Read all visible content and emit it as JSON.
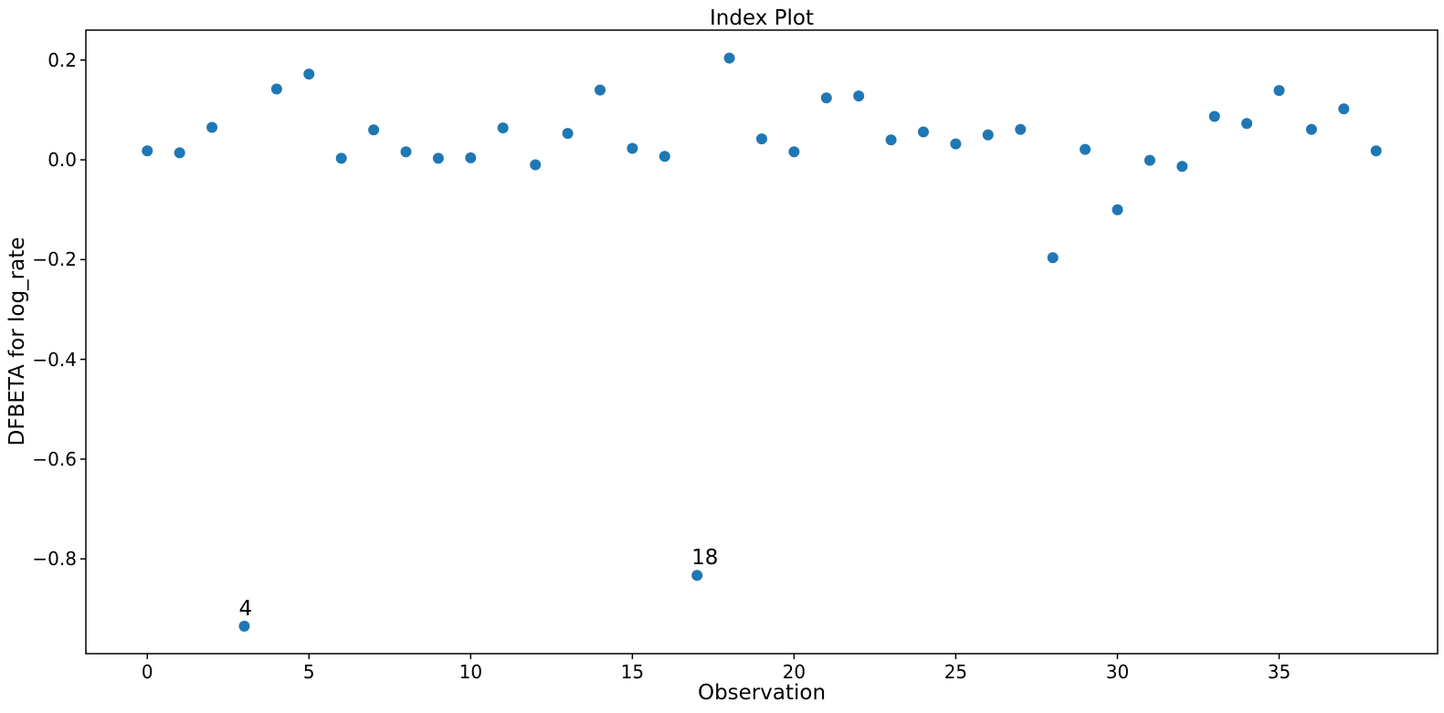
{
  "title": "Index Plot",
  "axes": {
    "xlabel": "Observation",
    "ylabel": "DFBETA for log_rate"
  },
  "colors": {
    "marker": "#1f77b4",
    "axis": "#000000",
    "text": "#000000",
    "background": "#ffffff"
  },
  "chart_data": {
    "type": "scatter",
    "title": "Index Plot",
    "xlabel": "Observation",
    "ylabel": "DFBETA for log_rate",
    "x": [
      0,
      1,
      2,
      3,
      4,
      5,
      6,
      7,
      8,
      9,
      10,
      11,
      12,
      13,
      14,
      15,
      16,
      17,
      18,
      19,
      20,
      21,
      22,
      23,
      24,
      25,
      26,
      27,
      28,
      29,
      30,
      31,
      32,
      33,
      34,
      35,
      36,
      37,
      38
    ],
    "y": [
      0.018,
      0.014,
      0.065,
      -0.935,
      0.142,
      0.172,
      0.003,
      0.06,
      0.016,
      0.003,
      0.004,
      0.064,
      -0.01,
      0.053,
      0.14,
      0.023,
      0.007,
      -0.833,
      0.204,
      0.042,
      0.016,
      0.124,
      0.128,
      0.04,
      0.056,
      0.032,
      0.05,
      0.061,
      -0.196,
      0.021,
      -0.1,
      -0.001,
      -0.013,
      0.087,
      0.073,
      0.139,
      0.061,
      0.102,
      0.018
    ],
    "annotations": [
      {
        "x": 3,
        "y": -0.935,
        "label": "4"
      },
      {
        "x": 17,
        "y": -0.833,
        "label": "18"
      }
    ],
    "xticks": {
      "values": [
        0,
        5,
        10,
        15,
        20,
        25,
        30,
        35
      ],
      "labels": [
        "0",
        "5",
        "10",
        "15",
        "20",
        "25",
        "30",
        "35"
      ]
    },
    "yticks": {
      "values": [
        0.2,
        0.0,
        -0.2,
        -0.4,
        -0.6,
        -0.8
      ],
      "labels": [
        "0.2",
        "0.0",
        "−0.2",
        "−0.4",
        "−0.6",
        "−0.8"
      ]
    },
    "xlim": [
      -1.9,
      39.9
    ],
    "ylim": [
      -0.99,
      0.26
    ],
    "grid": false,
    "legend_position": "none",
    "marker_color": "#1f77b4"
  }
}
